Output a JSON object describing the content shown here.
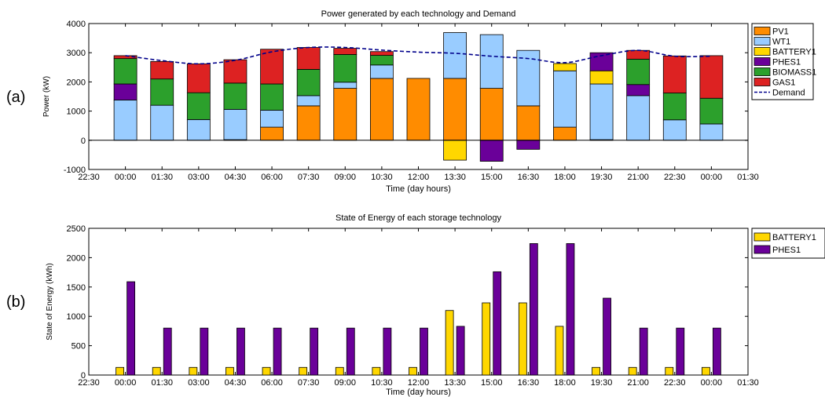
{
  "chart_data": [
    {
      "type": "bar",
      "panel_label": "(a)",
      "title": "Power generated by each technology and Demand",
      "xlabel": "Time (day hours)",
      "ylabel": "Power (kW)",
      "ylim": [
        -1000,
        4000
      ],
      "yticks": [
        -1000,
        0,
        1000,
        2000,
        3000,
        4000
      ],
      "xlim": [
        -1,
        17
      ],
      "xtick_labels": [
        "22:30",
        "00:00",
        "01:30",
        "03:00",
        "04:30",
        "06:00",
        "07:30",
        "09:00",
        "10:30",
        "12:00",
        "13:30",
        "15:00",
        "16:30",
        "18:00",
        "19:30",
        "21:00",
        "22:30",
        "00:00",
        "01:30"
      ],
      "categories": [
        "00:00",
        "01:30",
        "03:00",
        "04:30",
        "06:00",
        "07:30",
        "09:00",
        "10:30",
        "12:00",
        "13:30",
        "15:00",
        "16:30",
        "18:00",
        "19:30",
        "21:00",
        "22:30",
        "00:00"
      ],
      "stacked": true,
      "series": [
        {
          "name": "PV1",
          "color": "#ff8c00",
          "values": [
            0,
            0,
            0,
            20,
            450,
            1180,
            1780,
            2120,
            2120,
            2120,
            1780,
            1180,
            450,
            20,
            0,
            0,
            0
          ]
        },
        {
          "name": "WT1",
          "color": "#99ccff",
          "values": [
            1380,
            1200,
            710,
            1040,
            580,
            350,
            210,
            460,
            0,
            1570,
            1840,
            1900,
            1930,
            1910,
            1530,
            700,
            560
          ]
        },
        {
          "name": "BATTERY1",
          "color": "#ffd700",
          "values": [
            0,
            0,
            0,
            0,
            0,
            0,
            0,
            0,
            0,
            -680,
            0,
            0,
            250,
            450,
            0,
            0,
            0
          ]
        },
        {
          "name": "PHES1",
          "color": "#6a0099",
          "values": [
            550,
            0,
            0,
            0,
            0,
            0,
            0,
            0,
            0,
            0,
            -720,
            -310,
            0,
            620,
            380,
            0,
            0
          ]
        },
        {
          "name": "BIOMASS1",
          "color": "#2ca02c",
          "values": [
            870,
            900,
            920,
            900,
            900,
            900,
            950,
            330,
            0,
            0,
            0,
            0,
            0,
            0,
            870,
            920,
            880
          ]
        },
        {
          "name": "GAS1",
          "color": "#dd2222",
          "values": [
            100,
            600,
            990,
            800,
            1190,
            750,
            210,
            130,
            0,
            0,
            0,
            0,
            0,
            0,
            300,
            1270,
            1460
          ]
        }
      ],
      "demand": {
        "name": "Demand",
        "color": "#00008b",
        "values": [
          2900,
          2730,
          2620,
          2740,
          3030,
          3180,
          3180,
          3090,
          3020,
          2980,
          2880,
          2800,
          2660,
          2900,
          3080,
          2880,
          2880
        ]
      },
      "legend": "right"
    },
    {
      "type": "bar",
      "panel_label": "(b)",
      "title": "State of Energy of each storage technology",
      "xlabel": "Time (day hours)",
      "ylabel": "State of Energy (kWh)",
      "ylim": [
        0,
        2500
      ],
      "yticks": [
        0,
        500,
        1000,
        1500,
        2000,
        2500
      ],
      "xlim": [
        -1,
        17
      ],
      "xtick_labels": [
        "22:30",
        "00:00",
        "01:30",
        "03:00",
        "04:30",
        "06:00",
        "07:30",
        "09:00",
        "10:30",
        "12:00",
        "13:30",
        "15:00",
        "16:30",
        "18:00",
        "19:30",
        "21:00",
        "22:30",
        "00:00",
        "01:30"
      ],
      "categories": [
        "00:00",
        "01:30",
        "03:00",
        "04:30",
        "06:00",
        "07:30",
        "09:00",
        "10:30",
        "12:00",
        "13:30",
        "15:00",
        "16:30",
        "18:00",
        "19:30",
        "21:00",
        "22:30",
        "00:00"
      ],
      "stacked": false,
      "series": [
        {
          "name": "BATTERY1",
          "color": "#ffd700",
          "values": [
            130,
            130,
            130,
            130,
            130,
            130,
            130,
            130,
            130,
            1100,
            1230,
            1230,
            830,
            130,
            130,
            130,
            130
          ]
        },
        {
          "name": "PHES1",
          "color": "#6a0099",
          "values": [
            1590,
            800,
            800,
            800,
            800,
            800,
            800,
            800,
            800,
            830,
            1760,
            2240,
            2240,
            1310,
            800,
            800,
            800
          ]
        }
      ],
      "legend": "right"
    }
  ]
}
